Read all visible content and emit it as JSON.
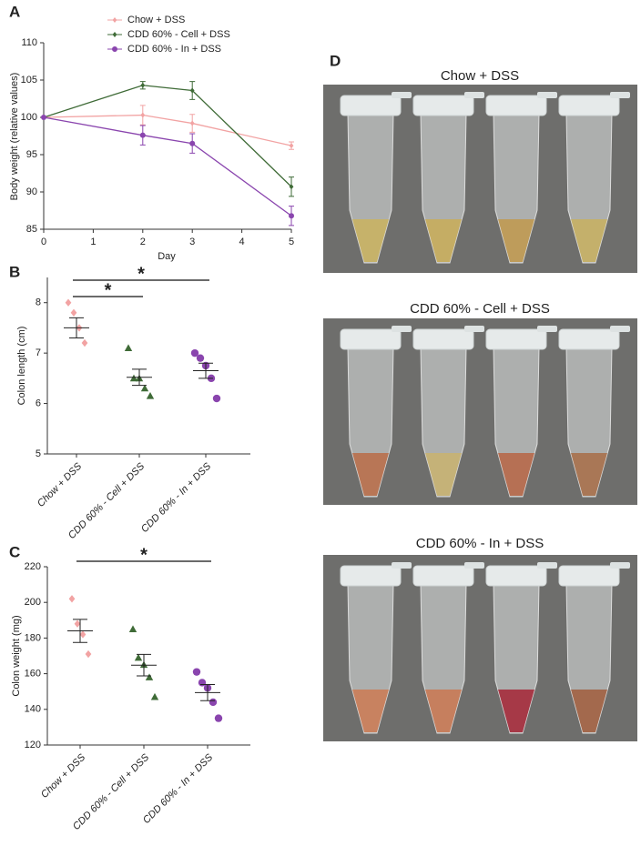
{
  "chart_data": [
    {
      "type": "line",
      "label": "A",
      "xlabel": "Day",
      "ylabel": "Body weight (relative values)",
      "x": [
        0,
        2,
        3,
        5
      ],
      "xlim": [
        0,
        5
      ],
      "xticks": [
        0,
        1,
        2,
        3,
        4,
        5
      ],
      "ylim": [
        85,
        110
      ],
      "yticks": [
        85,
        90,
        95,
        100,
        105,
        110
      ],
      "legend": "top-left",
      "series": [
        {
          "name": "Chow + DSS",
          "color": "#f2a3a3",
          "marker": "diamond",
          "values": [
            100,
            100.3,
            99.2,
            96.2
          ],
          "errors": [
            0,
            1.3,
            1.2,
            0.5
          ]
        },
        {
          "name": "CDD 60% - Cell + DSS",
          "color": "#3f6b37",
          "marker": "diamond",
          "values": [
            100,
            104.3,
            103.6,
            90.7
          ],
          "errors": [
            0,
            0.5,
            1.2,
            1.3
          ]
        },
        {
          "name": "CDD 60% - In + DSS",
          "color": "#8a45ae",
          "marker": "circle",
          "values": [
            100,
            97.6,
            96.5,
            86.8
          ],
          "errors": [
            0,
            1.3,
            1.3,
            1.3
          ]
        }
      ]
    },
    {
      "type": "dot",
      "label": "B",
      "ylabel": "Colon length (cm)",
      "categories": [
        "Chow + DSS",
        "CDD 60% - Cell + DSS",
        "CDD 60% - In + DSS"
      ],
      "colors": [
        "#f2a3a3",
        "#3f6b37",
        "#8a45ae"
      ],
      "markers": [
        "diamond",
        "triangle",
        "circle"
      ],
      "points": [
        [
          8.0,
          7.8,
          7.5,
          7.2
        ],
        [
          7.1,
          6.5,
          6.5,
          6.3,
          6.15
        ],
        [
          7.0,
          6.9,
          6.75,
          6.5,
          6.1
        ]
      ],
      "means": [
        7.5,
        6.52,
        6.65
      ],
      "errors": [
        0.2,
        0.16,
        0.15
      ],
      "ylim": [
        5,
        8.5
      ],
      "yticks": [
        5,
        6,
        7,
        8
      ],
      "significance": [
        {
          "from": 0,
          "to": 1,
          "label": "*"
        },
        {
          "from": 0,
          "to": 2,
          "label": "*"
        }
      ]
    },
    {
      "type": "dot",
      "label": "C",
      "ylabel": "Colon weight (mg)",
      "categories": [
        "Chow + DSS",
        "CDD 60% - Cell + DSS",
        "CDD 60% - In + DSS"
      ],
      "colors": [
        "#f2a3a3",
        "#3f6b37",
        "#8a45ae"
      ],
      "markers": [
        "diamond",
        "triangle",
        "circle"
      ],
      "points": [
        [
          202,
          188,
          182,
          171
        ],
        [
          185,
          169,
          165,
          158,
          147
        ],
        [
          161,
          155,
          152,
          144,
          135
        ]
      ],
      "means": [
        184,
        164.8,
        149.4
      ],
      "errors": [
        6.5,
        6,
        4.5
      ],
      "ylim": [
        120,
        220
      ],
      "yticks": [
        120,
        140,
        160,
        180,
        200,
        220
      ],
      "significance": [
        {
          "from": 0,
          "to": 2,
          "label": "*"
        }
      ]
    }
  ],
  "photo_panel": {
    "label": "D",
    "titles": [
      "Chow + DSS",
      "CDD 60% - Cell + DSS",
      "CDD 60% - In + DSS"
    ]
  }
}
